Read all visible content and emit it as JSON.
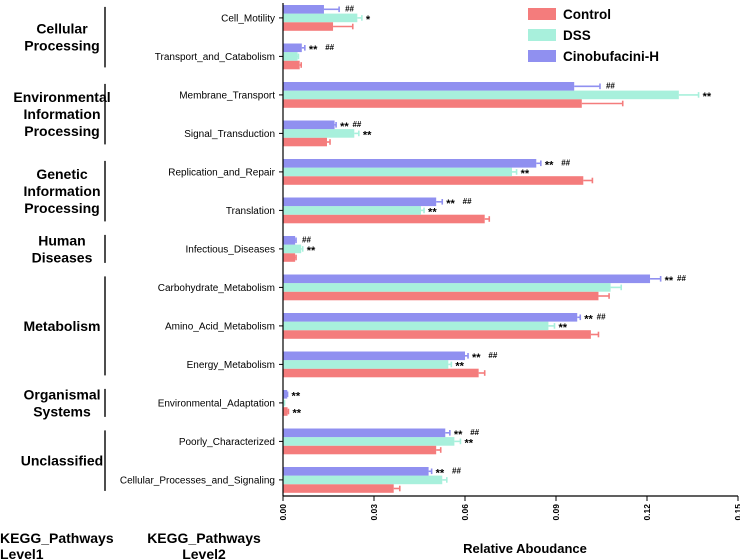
{
  "chart_data": {
    "type": "bar",
    "orientation": "horizontal",
    "xlabel": "Relative Aboudance",
    "xlim": [
      0,
      0.15
    ],
    "xticks": [
      "0.00",
      "0.03",
      "0.06",
      "0.09",
      "0.12",
      "0.15"
    ],
    "column_headers": {
      "level1": [
        "KEGG_Pathways",
        "Level1"
      ],
      "level2": [
        "KEGG_Pathways",
        "Level2"
      ]
    },
    "legend_position": "top-right",
    "groups": [
      {
        "name": [
          "Cellular",
          "Processing"
        ],
        "categories": [
          "Cell_Motility",
          "Transport_and_Catabolism"
        ]
      },
      {
        "name": [
          "Environmental",
          "Information",
          "Processing"
        ],
        "categories": [
          "Membrane_Transport",
          "Signal_Transduction"
        ]
      },
      {
        "name": [
          "Genetic",
          "Information",
          "Processing"
        ],
        "categories": [
          "Replication_and_Repair",
          "Translation"
        ]
      },
      {
        "name": [
          "Human",
          "Diseases"
        ],
        "categories": [
          "Infectious_Diseases"
        ]
      },
      {
        "name": [
          "Metabolism"
        ],
        "categories": [
          "Carbohydrate_Metabolism",
          "Amino_Acid_Metabolism",
          "Energy_Metabolism"
        ]
      },
      {
        "name": [
          "Organismal",
          "Systems"
        ],
        "categories": [
          "Environmental_Adaptation"
        ]
      },
      {
        "name": [
          "Unclassified"
        ],
        "categories": [
          "Poorly_Characterized",
          "Cellular_Processes_and_Signaling"
        ]
      }
    ],
    "categories": [
      "Cell_Motility",
      "Transport_and_Catabolism",
      "Membrane_Transport",
      "Signal_Transduction",
      "Replication_and_Repair",
      "Translation",
      "Infectious_Diseases",
      "Carbohydrate_Metabolism",
      "Amino_Acid_Metabolism",
      "Energy_Metabolism",
      "Environmental_Adaptation",
      "Poorly_Characterized",
      "Cellular_Processes_and_Signaling"
    ],
    "series": [
      {
        "name": "Control",
        "color": "#f47c7c",
        "values": [
          0.0165,
          0.0055,
          0.0985,
          0.0145,
          0.099,
          0.0665,
          0.004,
          0.104,
          0.1015,
          0.0645,
          0.0015,
          0.0505,
          0.0365
        ],
        "errors": [
          0.0065,
          0.0005,
          0.0135,
          0.001,
          0.003,
          0.0015,
          0.0003,
          0.0035,
          0.0025,
          0.002,
          0.0003,
          0.0015,
          0.002
        ]
      },
      {
        "name": "DSS",
        "color": "#a8f0dc",
        "values": [
          0.0245,
          0.0048,
          0.1305,
          0.0235,
          0.0755,
          0.0455,
          0.006,
          0.108,
          0.0875,
          0.0545,
          0.0004,
          0.0565,
          0.0525
        ],
        "errors": [
          0.0015,
          0.0003,
          0.0065,
          0.0015,
          0.0015,
          0.001,
          0.0005,
          0.0035,
          0.002,
          0.001,
          0.0001,
          0.002,
          0.0015
        ]
      },
      {
        "name": "Cinobufacini-H",
        "color": "#9090f0",
        "values": [
          0.0135,
          0.0062,
          0.096,
          0.017,
          0.0835,
          0.0505,
          0.004,
          0.121,
          0.097,
          0.06,
          0.0014,
          0.0535,
          0.048
        ],
        "errors": [
          0.005,
          0.001,
          0.0085,
          0.0005,
          0.0015,
          0.002,
          0.0003,
          0.0035,
          0.001,
          0.001,
          0.0001,
          0.0015,
          0.001
        ]
      }
    ],
    "annotations": [
      {
        "category": "Cell_Motility",
        "series": "DSS",
        "text": "*"
      },
      {
        "category": "Cell_Motility",
        "series": "Cinobufacini-H",
        "text": "##"
      },
      {
        "category": "Transport_and_Catabolism",
        "series": "Cinobufacini-H",
        "text": "** ##"
      },
      {
        "category": "Membrane_Transport",
        "series": "DSS",
        "text": "**"
      },
      {
        "category": "Membrane_Transport",
        "series": "Cinobufacini-H",
        "text": "##"
      },
      {
        "category": "Signal_Transduction",
        "series": "DSS",
        "text": "**"
      },
      {
        "category": "Signal_Transduction",
        "series": "Cinobufacini-H",
        "text": "**##"
      },
      {
        "category": "Replication_and_Repair",
        "series": "DSS",
        "text": "**"
      },
      {
        "category": "Replication_and_Repair",
        "series": "Cinobufacini-H",
        "text": "** ##"
      },
      {
        "category": "Translation",
        "series": "DSS",
        "text": "**"
      },
      {
        "category": "Translation",
        "series": "Cinobufacini-H",
        "text": "** ##"
      },
      {
        "category": "Infectious_Diseases",
        "series": "DSS",
        "text": "**"
      },
      {
        "category": "Infectious_Diseases",
        "series": "Cinobufacini-H",
        "text": "##"
      },
      {
        "category": "Carbohydrate_Metabolism",
        "series": "Cinobufacini-H",
        "text": "**##"
      },
      {
        "category": "Amino_Acid_Metabolism",
        "series": "DSS",
        "text": "**"
      },
      {
        "category": "Amino_Acid_Metabolism",
        "series": "Cinobufacini-H",
        "text": "**##"
      },
      {
        "category": "Energy_Metabolism",
        "series": "DSS",
        "text": "**"
      },
      {
        "category": "Energy_Metabolism",
        "series": "Cinobufacini-H",
        "text": "** ##"
      },
      {
        "category": "Environmental_Adaptation",
        "series": "Control",
        "text": "**"
      },
      {
        "category": "Environmental_Adaptation",
        "series": "Cinobufacini-H",
        "text": "**"
      },
      {
        "category": "Poorly_Characterized",
        "series": "DSS",
        "text": "**"
      },
      {
        "category": "Poorly_Characterized",
        "series": "Cinobufacini-H",
        "text": "** ##"
      },
      {
        "category": "Cellular_Processes_and_Signaling",
        "series": "Cinobufacini-H",
        "text": "** ##"
      }
    ]
  }
}
